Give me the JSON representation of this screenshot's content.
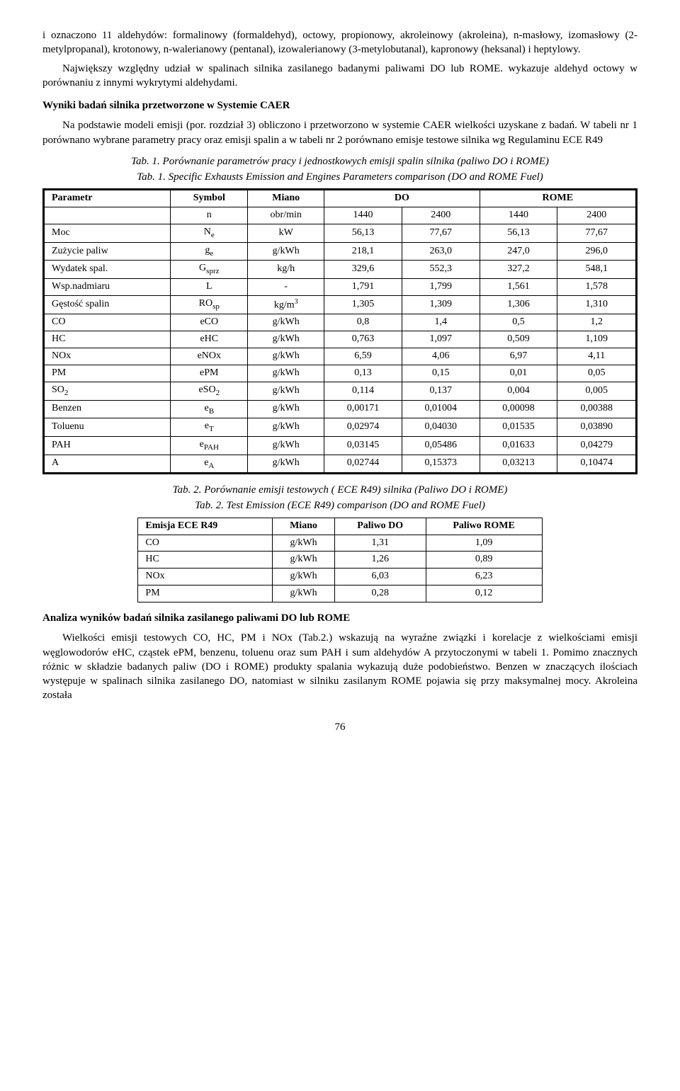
{
  "intro_para": "i oznaczono 11 aldehydów: formalinowy (formaldehyd), octowy, propionowy, akroleinowy (akroleina), n-masłowy, izomasłowy (2-metylpropanal), krotonowy, n-walerianowy (pentanal), izowalerianowy (3-metylobutanal), kapronowy (heksanal) i heptylowy.",
  "intro_para2": "Największy względny udział w spalinach silnika zasilanego badanymi paliwami DO lub ROME. wykazuje aldehyd octowy w porównaniu z innymi wykrytymi aldehydami.",
  "section1_title": "Wyniki badań silnika  przetworzone w Systemie CAER",
  "section1_para": "Na podstawie modeli emisji (por. rozdział 3) obliczono i przetworzono w systemie CAER wielkości uzyskane z badań. W tabeli nr 1 porównano wybrane parametry pracy oraz  emisji spalin a w tabeli nr 2 porównano emisje testowe silnika wg Regulaminu ECE R49",
  "tab1_caption": "Tab. 1. Porównanie parametrów pracy i jednostkowych emisji spalin  silnika (paliwo DO i ROME)",
  "tab1_caption_sub": "Tab. 1. Specific Exhausts Emission and Engines Parameters comparison (DO and ROME Fuel)",
  "t1": {
    "head": [
      "Parametr",
      "Symbol",
      "Miano",
      "DO",
      "ROME"
    ],
    "rows": [
      [
        "",
        "n",
        "obr/min",
        "1440",
        "2400",
        "1440",
        "2400"
      ],
      [
        "Moc",
        "Nₑ",
        "kW",
        "56,13",
        "77,67",
        "56,13",
        "77,67"
      ],
      [
        "Zużycie paliw",
        "gₑ",
        "g/kWh",
        "218,1",
        "263,0",
        "247,0",
        "296,0"
      ],
      [
        "Wydatek spal.",
        "Gₛₚᵣᵤ",
        "kg/h",
        "329,6",
        "552,3",
        "327,2",
        "548,1"
      ],
      [
        "Wsp.nadmiaru",
        "L",
        "-",
        "1,791",
        "1,799",
        "1,561",
        "1,578"
      ],
      [
        "Gęstość spalin",
        "ROₛₚ",
        "kg/m³",
        "1,305",
        "1,309",
        "1,306",
        "1,310"
      ],
      [
        "CO",
        "eCO",
        "g/kWh",
        "0,8",
        "1,4",
        "0,5",
        "1,2"
      ],
      [
        "HC",
        "eHC",
        "g/kWh",
        "0,763",
        "1,097",
        "0,509",
        "1,109"
      ],
      [
        "NOx",
        "eNOx",
        "g/kWh",
        "6,59",
        "4,06",
        "6,97",
        "4,11"
      ],
      [
        "PM",
        "ePM",
        "g/kWh",
        "0,13",
        "0,15",
        "0,01",
        "0,05"
      ],
      [
        "SO₂",
        "eSO₂",
        "g/kWh",
        "0,114",
        "0,137",
        "0,004",
        "0,005"
      ],
      [
        "Benzen",
        "e_B",
        "g/kWh",
        "0,00171",
        "0,01004",
        "0,00098",
        "0,00388"
      ],
      [
        "Toluenu",
        "e_T",
        "g/kWh",
        "0,02974",
        "0,04030",
        "0,01535",
        "0,03890"
      ],
      [
        "PAH",
        "e_PAH",
        "g/kWh",
        "0,03145",
        "0,05486",
        "0,01633",
        "0,04279"
      ],
      [
        "A",
        "e_A",
        "g/kWh",
        "0,02744",
        "0,15373",
        "0,03213",
        "0,10474"
      ]
    ]
  },
  "tab2_caption": "Tab. 2. Porównanie emisji testowych ( ECE R49) silnika (Paliwo DO i ROME)",
  "tab2_caption_sub": "Tab. 2. Test Emission (ECE R49)  comparison (DO and ROME Fuel)",
  "t2": {
    "head": [
      "Emisja ECE R49",
      "Miano",
      "Paliwo DO",
      "Paliwo ROME"
    ],
    "rows": [
      [
        "CO",
        "g/kWh",
        "1,31",
        "1,09"
      ],
      [
        "HC",
        "g/kWh",
        "1,26",
        "0,89"
      ],
      [
        "NOx",
        "g/kWh",
        "6,03",
        "6,23"
      ],
      [
        "PM",
        "g/kWh",
        "0,28",
        "0,12"
      ]
    ]
  },
  "section2_title": "Analiza wyników badań silnika zasilanego paliwami DO lub ROME",
  "section2_para": "Wielkości emisji testowych CO, HC, PM i NOx (Tab.2.) wskazują na wyraźne związki i korelacje z wielkościami emisji węglowodorów eHC, cząstek ePM, benzenu, toluenu oraz sum PAH i sum aldehydów A przytoczonymi w tabeli 1. Pomimo znacznych różnic w składzie badanych paliw (DO i ROME) produkty spalania wykazują duże podobieństwo. Benzen w znaczących ilościach występuje w spalinach silnika zasilanego DO, natomiast w silniku zasilanym ROME pojawia się przy maksymalnej mocy. Akroleina została",
  "page_num": "76",
  "symbol_html": {
    "Nₑ": "N<sub>e</sub>",
    "gₑ": "g<sub>e</sub>",
    "Gₛₚᵣᵤ": "G<sub>sprz</sub>",
    "ROₛₚ": "RO<sub>sp</sub>",
    "SO₂": "SO<sub>2</sub>",
    "eSO₂": "eSO<sub>2</sub>",
    "e_B": "e<sub>B</sub>",
    "e_T": "e<sub>T</sub>",
    "e_PAH": "e<sub>PAH</sub>",
    "e_A": "e<sub>A</sub>",
    "kg/m³": "kg/m<sup>3</sup>"
  }
}
